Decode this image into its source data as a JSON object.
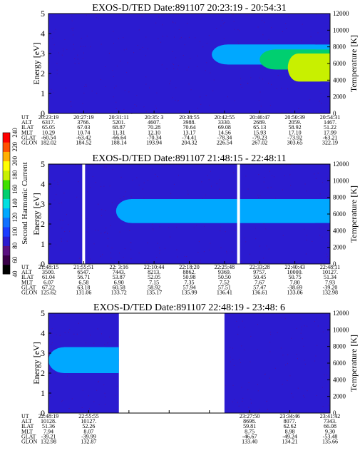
{
  "chart_data": [
    {
      "type": "heatmap",
      "title": "EXOS-D/TED   Date:891107  20:23:19 - 20:54:31",
      "ylabel": "Energy [eV]",
      "y2label": "Temperature [K]",
      "ylim": [
        0,
        5
      ],
      "y2lim": [
        0,
        12000
      ],
      "yticks": [
        "0",
        "1",
        "2",
        "3",
        "4",
        "5"
      ],
      "y2ticks": [
        "0",
        "2000",
        "4000",
        "6000",
        "8000",
        "10000",
        "12000"
      ],
      "background_level": 90,
      "bands": [
        {
          "t0": 0.58,
          "t1": 1.0,
          "e_lo": 2.45,
          "e_hi": 3.45,
          "level": 125
        },
        {
          "t0": 0.75,
          "t1": 1.0,
          "e_lo": 2.2,
          "e_hi": 3.2,
          "level": 150
        },
        {
          "t0": 0.85,
          "t1": 1.0,
          "e_lo": 1.6,
          "e_hi": 3.0,
          "level": 175
        }
      ],
      "row_labels": [
        "UT",
        "ALT",
        "ILAT",
        "MLT",
        "GLAT",
        "GLON"
      ],
      "columns": [
        [
          "20:23:19",
          "6317.",
          "65.05",
          "10.29",
          "-60.54",
          "182.02"
        ],
        [
          "20:27:19",
          "3766.",
          "67.03",
          "10.74",
          "-63.42",
          "184.52"
        ],
        [
          "20:31:11",
          "5201.",
          "68.87",
          "11.31",
          "-66.64",
          "188.14"
        ],
        [
          "20:35: 3",
          "4607.",
          "70.28",
          "12.10",
          "-70.34",
          "193.94"
        ],
        [
          "20:38:55",
          "3988.",
          "70.64",
          "13.17",
          "-74.41",
          "204.32"
        ],
        [
          "20:42:55",
          "3330.",
          "69.08",
          "14.56",
          "-78.34",
          "226.54"
        ],
        [
          "20:46:47",
          "2689.",
          "65.13",
          "15.93",
          "-79.23",
          "267.02"
        ],
        [
          "20:50:39",
          "2059.",
          "58.92",
          "17.10",
          "-73.92",
          "303.65"
        ],
        [
          "20:54:31",
          "1467.",
          "51.22",
          "17.99",
          "-63.21",
          "322.19"
        ]
      ]
    },
    {
      "type": "heatmap",
      "title": "EXOS-D/TED   Date:891107  21:48:15 - 22:48:11",
      "ylabel": "Energy [eV]",
      "y2label": "Temperature [K]",
      "ylim": [
        0,
        5
      ],
      "y2lim": [
        0,
        12000
      ],
      "yticks": [
        "0",
        "1",
        "2",
        "3",
        "4",
        "5"
      ],
      "y2ticks": [
        "0",
        "2000",
        "4000",
        "6000",
        "8000",
        "10000",
        "12000"
      ],
      "background_level": 90,
      "bands": [
        {
          "t0": 0.24,
          "t1": 1.0,
          "e_lo": 2.05,
          "e_hi": 3.25,
          "level": 120
        }
      ],
      "gaps": [
        0.125,
        0.675
      ],
      "row_labels": [
        "UT",
        "ALT",
        "ILAT",
        "MLT",
        "GLAT",
        "GLON"
      ],
      "columns": [
        [
          "21:48:15",
          "3500.",
          "61.04",
          "6.07",
          "67.22",
          "125.62"
        ],
        [
          "21:55:51",
          "6547.",
          "56.71",
          "6.58",
          "63.18",
          "131.06"
        ],
        [
          "22: 3:16",
          "7443.",
          "53.87",
          "6.90",
          "60.58",
          "133.72"
        ],
        [
          "22:10:44",
          "8213.",
          "52.05",
          "7.15",
          "58.92",
          "135.17"
        ],
        [
          "22:18:20",
          "8862.",
          "50.98",
          "7.35",
          "57.94",
          "135.99"
        ],
        [
          "22:25:48",
          "9369.",
          "50.50",
          "7.52",
          "57.51",
          "136.41"
        ],
        [
          "22:33:28",
          "9757.",
          "50.45",
          "7.67",
          "57.47",
          "136.61"
        ],
        [
          "22:40:43",
          "10000.",
          "50.75",
          "7.80",
          "-38.69",
          "133.06"
        ],
        [
          "22:48:11",
          "10127.",
          "51.34",
          "7.93",
          "-39.20",
          "132.98"
        ]
      ]
    },
    {
      "type": "heatmap",
      "title": "EXOS-D/TED   Date:891107  22:48:19 - 23:48: 6",
      "ylabel": "Energy [eV]",
      "y2label": "Temperature [K]",
      "ylim": [
        0,
        5
      ],
      "y2lim": [
        0,
        12000
      ],
      "yticks": [
        "0",
        "1",
        "2",
        "3",
        "4",
        "5"
      ],
      "y2ticks": [
        "0",
        "2000",
        "4000",
        "6000",
        "8000",
        "10000",
        "12000"
      ],
      "background_level": 90,
      "bands": [
        {
          "t0": 0.0,
          "t1": 0.25,
          "e_lo": 2.0,
          "e_hi": 3.3,
          "level": 120
        }
      ],
      "data_segments": [
        [
          0.0,
          0.25
        ],
        [
          0.625,
          1.0
        ]
      ],
      "row_labels": [
        "UT",
        "ALT",
        "ILAT",
        "MLT",
        "GLAT",
        "GLON"
      ],
      "columns": [
        [
          "22:48:19",
          "10128.",
          "51.36",
          "7.94",
          "-39.21",
          "132.98"
        ],
        [
          "22:55:55",
          "10127.",
          "52.26",
          "8.07",
          "-39.99",
          "132.87"
        ],
        [
          "",
          "",
          "",
          "",
          "",
          ""
        ],
        [
          "",
          "",
          "",
          "",
          "",
          ""
        ],
        [
          "",
          "",
          "",
          "",
          "",
          ""
        ],
        [
          "23:27:50",
          "8698.",
          "59.81",
          "8.75",
          "-46.67",
          "133.40"
        ],
        [
          "23:34:46",
          "8077.",
          "62.62",
          "8.98",
          "-49.24",
          "134.21"
        ],
        [
          "23:41:42",
          "7343.",
          "66.08",
          "9.30",
          "-53.48",
          "135.66"
        ]
      ]
    }
  ],
  "colorbar": {
    "label": "Second Harmonic Current",
    "ticks": [
      "40",
      "60",
      "80",
      "100",
      "120",
      "140",
      "160",
      "180",
      "200",
      "220",
      "240"
    ],
    "range": [
      40,
      240
    ],
    "colors": [
      "#000000",
      "#3a0048",
      "#5a1080",
      "#2b1bd0",
      "#1b3cff",
      "#1070ff",
      "#00a8ff",
      "#00e0e0",
      "#00cf70",
      "#40e000",
      "#c8f000",
      "#ffff00",
      "#ffb000",
      "#ff5000",
      "#ff0000"
    ]
  }
}
